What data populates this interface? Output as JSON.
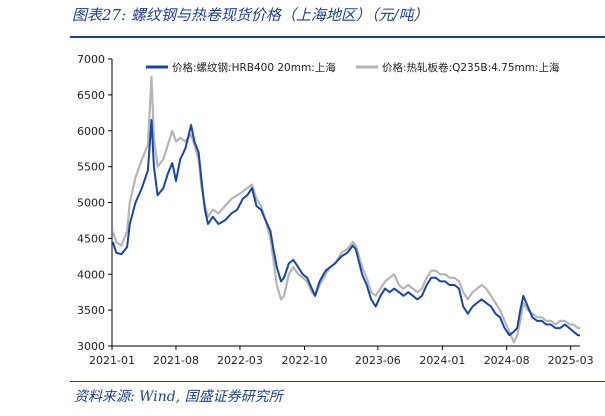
{
  "header": {
    "title": "图表27:  螺纹钢与热卷现货价格（上海地区）（元/吨）"
  },
  "footer": {
    "source": "资料来源:  Wind,  国盛证券研究所"
  },
  "colors": {
    "rebar": "#1a45a0",
    "hrc": "#b5b5b5",
    "accent": "#1f3f8a"
  },
  "chart_data": {
    "type": "line",
    "title": "",
    "xlabel": "",
    "ylabel": "",
    "ylim": [
      3000,
      7000
    ],
    "xlim": [
      "2021-01",
      "2025-04"
    ],
    "y_ticks": [
      "3000",
      "3500",
      "4000",
      "4500",
      "5000",
      "5500",
      "6000",
      "6500",
      "7000"
    ],
    "x_ticks": [
      {
        "date": "2021-01",
        "label": "2021-01"
      },
      {
        "date": "2021-08",
        "label": "2021-08"
      },
      {
        "date": "2022-03",
        "label": "2022-03"
      },
      {
        "date": "2022-10",
        "label": "2022-10"
      },
      {
        "date": "2023-06",
        "label": "2023-06"
      },
      {
        "date": "2024-01",
        "label": "2024-01"
      },
      {
        "date": "2024-08",
        "label": "2024-08"
      },
      {
        "date": "2025-03",
        "label": "2025-03"
      }
    ],
    "legend_position": "top",
    "grid": false,
    "series": [
      {
        "name": "价格:螺纹钢:HRB400 20mm:上海",
        "color": "#1a45a0",
        "points": [
          [
            "2021-01-04",
            4450
          ],
          [
            "2021-01-15",
            4300
          ],
          [
            "2021-02-01",
            4280
          ],
          [
            "2021-02-20",
            4380
          ],
          [
            "2021-03-01",
            4700
          ],
          [
            "2021-03-20",
            5000
          ],
          [
            "2021-04-10",
            5200
          ],
          [
            "2021-04-30",
            5450
          ],
          [
            "2021-05-12",
            6150
          ],
          [
            "2021-05-20",
            5500
          ],
          [
            "2021-06-01",
            5100
          ],
          [
            "2021-06-20",
            5200
          ],
          [
            "2021-07-05",
            5400
          ],
          [
            "2021-07-20",
            5550
          ],
          [
            "2021-08-01",
            5300
          ],
          [
            "2021-08-15",
            5600
          ],
          [
            "2021-09-01",
            5750
          ],
          [
            "2021-09-10",
            5900
          ],
          [
            "2021-09-20",
            6080
          ],
          [
            "2021-10-01",
            5850
          ],
          [
            "2021-10-15",
            5700
          ],
          [
            "2021-10-25",
            5300
          ],
          [
            "2021-11-05",
            4900
          ],
          [
            "2021-11-15",
            4700
          ],
          [
            "2021-12-01",
            4800
          ],
          [
            "2021-12-20",
            4700
          ],
          [
            "2022-01-10",
            4750
          ],
          [
            "2022-02-01",
            4850
          ],
          [
            "2022-02-20",
            4900
          ],
          [
            "2022-03-10",
            5050
          ],
          [
            "2022-03-25",
            5100
          ],
          [
            "2022-04-10",
            5200
          ],
          [
            "2022-04-25",
            4950
          ],
          [
            "2022-05-10",
            4900
          ],
          [
            "2022-05-25",
            4750
          ],
          [
            "2022-06-10",
            4600
          ],
          [
            "2022-06-20",
            4350
          ],
          [
            "2022-07-01",
            4100
          ],
          [
            "2022-07-15",
            3900
          ],
          [
            "2022-07-25",
            3950
          ],
          [
            "2022-08-10",
            4150
          ],
          [
            "2022-08-25",
            4200
          ],
          [
            "2022-09-10",
            4100
          ],
          [
            "2022-09-25",
            4000
          ],
          [
            "2022-10-10",
            3950
          ],
          [
            "2022-10-25",
            3800
          ],
          [
            "2022-11-05",
            3700
          ],
          [
            "2022-11-20",
            3900
          ],
          [
            "2022-12-10",
            4050
          ],
          [
            "2022-12-25",
            4100
          ],
          [
            "2023-01-10",
            4150
          ],
          [
            "2023-02-01",
            4250
          ],
          [
            "2023-02-20",
            4300
          ],
          [
            "2023-03-10",
            4400
          ],
          [
            "2023-03-20",
            4350
          ],
          [
            "2023-04-10",
            4000
          ],
          [
            "2023-04-25",
            3850
          ],
          [
            "2023-05-10",
            3650
          ],
          [
            "2023-05-25",
            3550
          ],
          [
            "2023-06-10",
            3700
          ],
          [
            "2023-06-25",
            3800
          ],
          [
            "2023-07-10",
            3750
          ],
          [
            "2023-07-25",
            3800
          ],
          [
            "2023-08-10",
            3750
          ],
          [
            "2023-08-25",
            3700
          ],
          [
            "2023-09-10",
            3750
          ],
          [
            "2023-09-25",
            3700
          ],
          [
            "2023-10-10",
            3650
          ],
          [
            "2023-10-25",
            3700
          ],
          [
            "2023-11-10",
            3850
          ],
          [
            "2023-11-25",
            3950
          ],
          [
            "2023-12-10",
            3950
          ],
          [
            "2023-12-25",
            3900
          ],
          [
            "2024-01-10",
            3900
          ],
          [
            "2024-01-25",
            3850
          ],
          [
            "2024-02-10",
            3850
          ],
          [
            "2024-02-25",
            3800
          ],
          [
            "2024-03-10",
            3550
          ],
          [
            "2024-03-25",
            3450
          ],
          [
            "2024-04-10",
            3550
          ],
          [
            "2024-04-25",
            3600
          ],
          [
            "2024-05-10",
            3650
          ],
          [
            "2024-05-25",
            3600
          ],
          [
            "2024-06-10",
            3550
          ],
          [
            "2024-06-25",
            3450
          ],
          [
            "2024-07-10",
            3400
          ],
          [
            "2024-07-25",
            3250
          ],
          [
            "2024-08-10",
            3150
          ],
          [
            "2024-08-25",
            3200
          ],
          [
            "2024-09-05",
            3250
          ],
          [
            "2024-09-15",
            3500
          ],
          [
            "2024-09-25",
            3700
          ],
          [
            "2024-10-10",
            3550
          ],
          [
            "2024-10-25",
            3400
          ],
          [
            "2024-11-10",
            3350
          ],
          [
            "2024-11-25",
            3350
          ],
          [
            "2024-12-10",
            3300
          ],
          [
            "2024-12-25",
            3300
          ],
          [
            "2025-01-10",
            3250
          ],
          [
            "2025-01-25",
            3250
          ],
          [
            "2025-02-10",
            3300
          ],
          [
            "2025-02-25",
            3250
          ],
          [
            "2025-03-10",
            3200
          ],
          [
            "2025-03-25",
            3150
          ],
          [
            "2025-04-01",
            3150
          ]
        ]
      },
      {
        "name": "价格:热轧板卷:Q235B:4.75mm:上海",
        "color": "#b5b5b5",
        "points": [
          [
            "2021-01-04",
            4600
          ],
          [
            "2021-01-15",
            4450
          ],
          [
            "2021-02-01",
            4400
          ],
          [
            "2021-02-20",
            4600
          ],
          [
            "2021-03-01",
            5000
          ],
          [
            "2021-03-20",
            5350
          ],
          [
            "2021-04-10",
            5600
          ],
          [
            "2021-04-30",
            5800
          ],
          [
            "2021-05-12",
            6750
          ],
          [
            "2021-05-20",
            5900
          ],
          [
            "2021-06-01",
            5500
          ],
          [
            "2021-06-20",
            5600
          ],
          [
            "2021-07-05",
            5800
          ],
          [
            "2021-07-20",
            6000
          ],
          [
            "2021-08-01",
            5850
          ],
          [
            "2021-08-15",
            5900
          ],
          [
            "2021-09-01",
            5850
          ],
          [
            "2021-09-10",
            5900
          ],
          [
            "2021-09-20",
            5950
          ],
          [
            "2021-10-01",
            5800
          ],
          [
            "2021-10-15",
            5600
          ],
          [
            "2021-10-25",
            5200
          ],
          [
            "2021-11-05",
            4950
          ],
          [
            "2021-11-15",
            4800
          ],
          [
            "2021-12-01",
            4900
          ],
          [
            "2021-12-20",
            4850
          ],
          [
            "2022-01-10",
            4950
          ],
          [
            "2022-02-01",
            5050
          ],
          [
            "2022-02-20",
            5100
          ],
          [
            "2022-03-10",
            5150
          ],
          [
            "2022-03-25",
            5200
          ],
          [
            "2022-04-10",
            5250
          ],
          [
            "2022-04-25",
            5050
          ],
          [
            "2022-05-10",
            4950
          ],
          [
            "2022-05-25",
            4750
          ],
          [
            "2022-06-10",
            4500
          ],
          [
            "2022-06-20",
            4200
          ],
          [
            "2022-07-01",
            3850
          ],
          [
            "2022-07-15",
            3650
          ],
          [
            "2022-07-25",
            3700
          ],
          [
            "2022-08-10",
            4000
          ],
          [
            "2022-08-25",
            4100
          ],
          [
            "2022-09-10",
            4000
          ],
          [
            "2022-09-25",
            3950
          ],
          [
            "2022-10-10",
            3900
          ],
          [
            "2022-10-25",
            3750
          ],
          [
            "2022-11-05",
            3700
          ],
          [
            "2022-11-20",
            3850
          ],
          [
            "2022-12-10",
            4000
          ],
          [
            "2022-12-25",
            4100
          ],
          [
            "2023-01-10",
            4150
          ],
          [
            "2023-02-01",
            4300
          ],
          [
            "2023-02-20",
            4350
          ],
          [
            "2023-03-10",
            4450
          ],
          [
            "2023-03-20",
            4400
          ],
          [
            "2023-04-10",
            4100
          ],
          [
            "2023-04-25",
            3950
          ],
          [
            "2023-05-10",
            3750
          ],
          [
            "2023-05-25",
            3700
          ],
          [
            "2023-06-10",
            3800
          ],
          [
            "2023-06-25",
            3900
          ],
          [
            "2023-07-10",
            3950
          ],
          [
            "2023-07-25",
            4000
          ],
          [
            "2023-08-10",
            3850
          ],
          [
            "2023-08-25",
            3800
          ],
          [
            "2023-09-10",
            3850
          ],
          [
            "2023-09-25",
            3800
          ],
          [
            "2023-10-10",
            3750
          ],
          [
            "2023-10-25",
            3800
          ],
          [
            "2023-11-10",
            3950
          ],
          [
            "2023-11-25",
            4050
          ],
          [
            "2023-12-10",
            4050
          ],
          [
            "2023-12-25",
            4000
          ],
          [
            "2024-01-10",
            4000
          ],
          [
            "2024-01-25",
            3950
          ],
          [
            "2024-02-10",
            3950
          ],
          [
            "2024-02-25",
            3900
          ],
          [
            "2024-03-10",
            3750
          ],
          [
            "2024-03-25",
            3650
          ],
          [
            "2024-04-10",
            3750
          ],
          [
            "2024-04-25",
            3800
          ],
          [
            "2024-05-10",
            3850
          ],
          [
            "2024-05-25",
            3800
          ],
          [
            "2024-06-10",
            3700
          ],
          [
            "2024-06-25",
            3600
          ],
          [
            "2024-07-10",
            3500
          ],
          [
            "2024-07-25",
            3350
          ],
          [
            "2024-08-10",
            3200
          ],
          [
            "2024-08-25",
            3050
          ],
          [
            "2024-09-05",
            3150
          ],
          [
            "2024-09-15",
            3350
          ],
          [
            "2024-09-25",
            3600
          ],
          [
            "2024-10-10",
            3500
          ],
          [
            "2024-10-25",
            3450
          ],
          [
            "2024-11-10",
            3400
          ],
          [
            "2024-11-25",
            3400
          ],
          [
            "2024-12-10",
            3350
          ],
          [
            "2024-12-25",
            3350
          ],
          [
            "2025-01-10",
            3300
          ],
          [
            "2025-01-25",
            3350
          ],
          [
            "2025-02-10",
            3350
          ],
          [
            "2025-02-25",
            3300
          ],
          [
            "2025-03-10",
            3300
          ],
          [
            "2025-03-25",
            3250
          ],
          [
            "2025-04-01",
            3250
          ]
        ]
      }
    ]
  }
}
